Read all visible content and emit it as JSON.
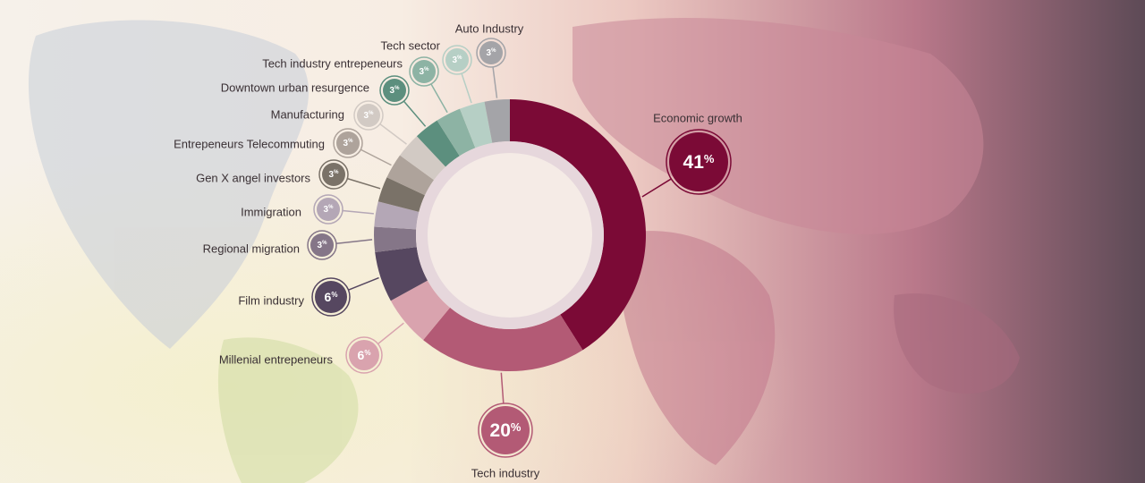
{
  "chart_data": {
    "type": "pie",
    "donut": true,
    "unit": "%",
    "slices": [
      {
        "label": "Economic growth",
        "value": 41,
        "color": "#7b0a36"
      },
      {
        "label": "Tech industry",
        "value": 20,
        "color": "#b35a75"
      },
      {
        "label": "Millenial entrepeneurs",
        "value": 6,
        "color": "#d9a3ae"
      },
      {
        "label": "Film industry",
        "value": 6,
        "color": "#564760"
      },
      {
        "label": "Regional migration",
        "value": 3,
        "color": "#857688"
      },
      {
        "label": "Immigration",
        "value": 3,
        "color": "#b4a7b6"
      },
      {
        "label": "Gen X angel investors",
        "value": 3,
        "color": "#7a7268"
      },
      {
        "label": "Entrepeneurs Telecommuting",
        "value": 3,
        "color": "#aea39b"
      },
      {
        "label": "Manufacturing",
        "value": 3,
        "color": "#d2cac4"
      },
      {
        "label": "Downtown urban resurgence",
        "value": 3,
        "color": "#5c8f7e"
      },
      {
        "label": "Tech industry entrepeneurs",
        "value": 3,
        "color": "#8db3a4"
      },
      {
        "label": "Tech sector",
        "value": 3,
        "color": "#b6cfc5"
      },
      {
        "label": "Auto Industry",
        "value": 3,
        "color": "#a4a4a8"
      }
    ]
  }
}
